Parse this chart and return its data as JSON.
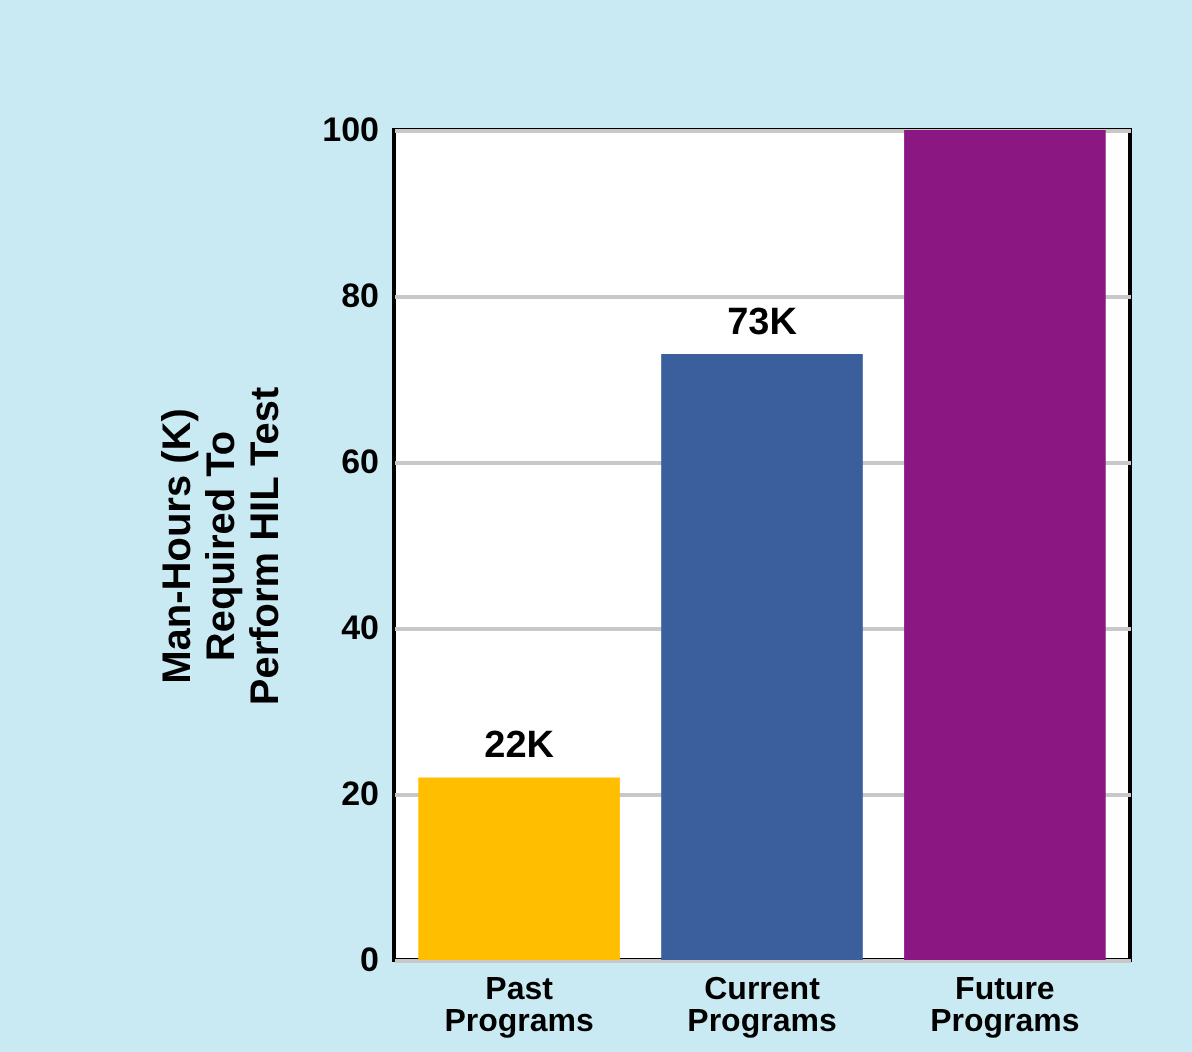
{
  "chart_data": {
    "type": "bar",
    "ylabel": "Man-Hours (K) Required To Perform HIL Test",
    "categories": [
      "Past Programs",
      "Current Programs",
      "Future Programs"
    ],
    "values": [
      22,
      73,
      100
    ],
    "colors": [
      "#ffbf00",
      "#3b5f9c",
      "#8b1882"
    ],
    "value_labels": [
      "22K",
      "73K",
      null
    ],
    "ylim": [
      0,
      100
    ],
    "yticks": [
      0,
      20,
      40,
      60,
      80,
      100
    ],
    "grid": "y"
  }
}
